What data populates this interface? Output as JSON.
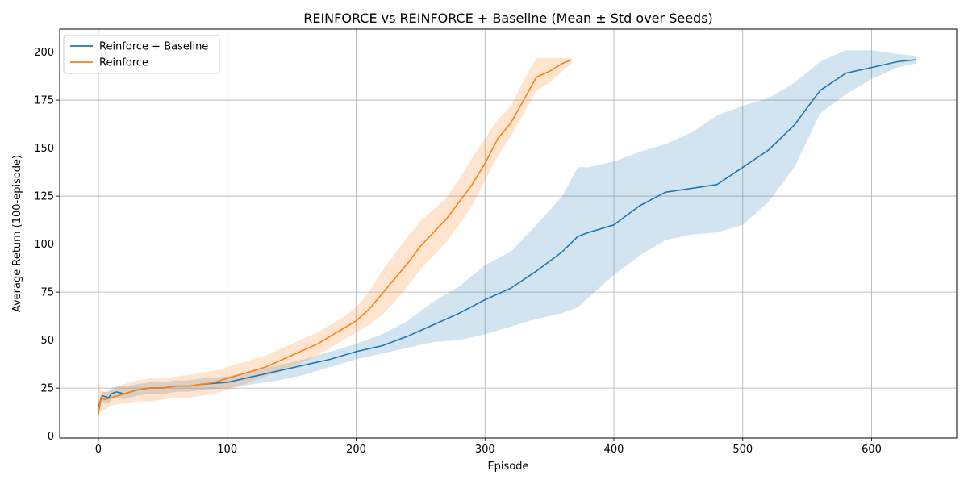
{
  "chart_data": {
    "type": "line",
    "title": "REINFORCE vs REINFORCE + Baseline (Mean ± Std over Seeds)",
    "xlabel": "Episode",
    "ylabel": "Average Return (100-episode)",
    "xlim": [
      -30,
      666
    ],
    "ylim": [
      -1,
      212
    ],
    "xticks": [
      0,
      100,
      200,
      300,
      400,
      500,
      600
    ],
    "yticks": [
      0,
      25,
      50,
      75,
      100,
      125,
      150,
      175,
      200
    ],
    "grid": true,
    "legend_position": "top-left",
    "series": [
      {
        "name": "Reinforce + Baseline",
        "color": "#1f77b4",
        "x": [
          0,
          3,
          8,
          10,
          14,
          20,
          30,
          40,
          50,
          60,
          70,
          80,
          100,
          120,
          140,
          160,
          180,
          200,
          220,
          240,
          260,
          280,
          300,
          320,
          340,
          360,
          372,
          380,
          400,
          420,
          440,
          460,
          480,
          500,
          520,
          540,
          560,
          580,
          600,
          620,
          634
        ],
        "mean": [
          15,
          21,
          20,
          22,
          23,
          22,
          24,
          25,
          25,
          26,
          26,
          27,
          28,
          31,
          34,
          37,
          40,
          44,
          47,
          52,
          58,
          64,
          71,
          77,
          86,
          96,
          104,
          106,
          110,
          120,
          127,
          129,
          131,
          140,
          149,
          162,
          180,
          189,
          192,
          195,
          196
        ],
        "upper": [
          18,
          23,
          23,
          25,
          26,
          26,
          27,
          28,
          28,
          29,
          29,
          30,
          31,
          34,
          37,
          40,
          44,
          48,
          53,
          60,
          70,
          78,
          89,
          96,
          110,
          125,
          140,
          140,
          143,
          148,
          152,
          158,
          167,
          172,
          176,
          184,
          195,
          201,
          201,
          199,
          198
        ],
        "lower": [
          12,
          18,
          17,
          19,
          20,
          19,
          21,
          22,
          22,
          23,
          23,
          24,
          25,
          27,
          29,
          32,
          36,
          40,
          43,
          46,
          49,
          50,
          53,
          57,
          61,
          64,
          67,
          72,
          84,
          94,
          102,
          105,
          106,
          110,
          122,
          140,
          168,
          178,
          186,
          192,
          194
        ]
      },
      {
        "name": "Reinforce",
        "color": "#ff7f0e",
        "x": [
          0,
          2,
          5,
          10,
          20,
          30,
          40,
          50,
          60,
          70,
          80,
          90,
          100,
          110,
          120,
          130,
          140,
          150,
          160,
          170,
          180,
          190,
          200,
          210,
          220,
          230,
          240,
          250,
          260,
          270,
          280,
          290,
          300,
          310,
          320,
          330,
          340,
          350,
          360,
          367
        ],
        "mean": [
          11,
          20,
          19,
          20,
          22,
          24,
          25,
          25,
          26,
          26,
          27,
          28,
          30,
          32,
          34,
          36,
          39,
          42,
          45,
          48,
          52,
          56,
          60,
          66,
          74,
          82,
          90,
          99,
          106,
          113,
          122,
          131,
          142,
          155,
          163,
          175,
          187,
          190,
          194,
          196
        ],
        "upper": [
          29,
          24,
          23,
          24,
          27,
          29,
          30,
          30,
          31,
          32,
          33,
          34,
          36,
          38,
          40,
          42,
          45,
          48,
          51,
          54,
          58,
          62,
          67,
          75,
          86,
          95,
          104,
          112,
          118,
          124,
          134,
          145,
          155,
          165,
          172,
          185,
          197,
          197,
          197,
          197
        ],
        "lower": [
          14,
          13,
          14,
          16,
          17,
          18,
          18,
          19,
          20,
          20,
          21,
          22,
          24,
          26,
          29,
          31,
          34,
          36,
          39,
          42,
          46,
          50,
          54,
          58,
          63,
          70,
          78,
          87,
          94,
          101,
          110,
          120,
          133,
          146,
          156,
          168,
          180,
          184,
          190,
          194
        ]
      }
    ]
  }
}
